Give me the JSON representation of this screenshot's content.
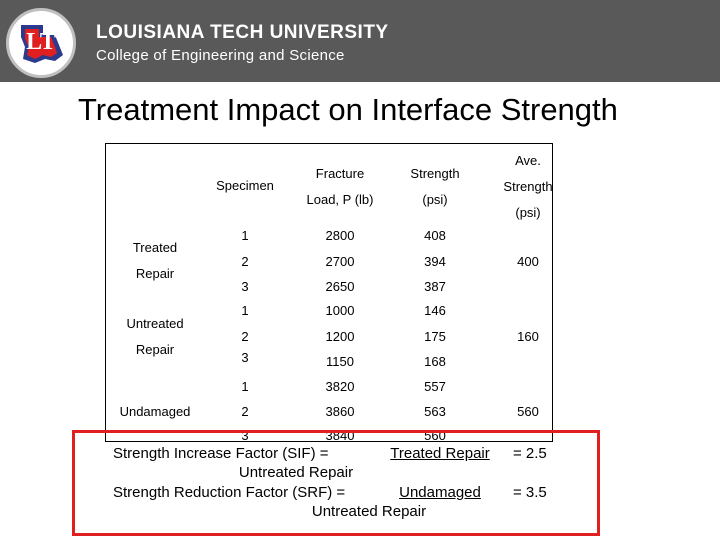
{
  "header": {
    "university": "LOUISIANA TECH UNIVERSITY",
    "college": "College of Engineering and Science",
    "logo_text": "LT",
    "colors": {
      "bar": "#595959",
      "logo_red": "#e02020",
      "logo_blue": "#2b3a8c"
    }
  },
  "slide": {
    "title": "Treatment Impact on Interface Strength"
  },
  "table": {
    "headers": {
      "specimen": "Specimen",
      "fracture_1": "Fracture",
      "fracture_2": "Load, P (lb)",
      "strength_1": "Strength",
      "strength_2": "(psi)",
      "ave_1": "Ave.",
      "ave_2": "Strength",
      "ave_3": "(psi)"
    },
    "groups": [
      {
        "label_1": "Treated",
        "label_2": "Repair",
        "average": "400",
        "rows": [
          {
            "specimen": "1",
            "load": "2800",
            "strength": "408"
          },
          {
            "specimen": "2",
            "load": "2700",
            "strength": "394"
          },
          {
            "specimen": "3",
            "load": "2650",
            "strength": "387"
          }
        ]
      },
      {
        "label_1": "Untreated",
        "label_2": "Repair",
        "average": "160",
        "rows": [
          {
            "specimen": "1",
            "load": "1000",
            "strength": "146"
          },
          {
            "specimen": "2",
            "load": "1200",
            "strength": "175"
          },
          {
            "specimen": "3",
            "load": "1150",
            "strength": "168"
          }
        ]
      },
      {
        "label_1": "Undamaged",
        "label_2": "",
        "average": "560",
        "rows": [
          {
            "specimen": "1",
            "load": "3820",
            "strength": "557"
          },
          {
            "specimen": "2",
            "load": "3860",
            "strength": "563"
          },
          {
            "specimen": "3",
            "load": "3840",
            "strength": "560"
          }
        ]
      }
    ]
  },
  "formulas": {
    "sif_label": "Strength Increase Factor (SIF)   =",
    "sif_numerator": "Treated Repair",
    "sif_denominator": "Untreated Repair",
    "sif_result": "=  2.5",
    "srf_label": "Strength Reduction Factor (SRF) =",
    "srf_numerator": "Undamaged",
    "srf_denominator": "Untreated Repair",
    "srf_result": "=  3.5",
    "highlight_color": "#e02020"
  }
}
